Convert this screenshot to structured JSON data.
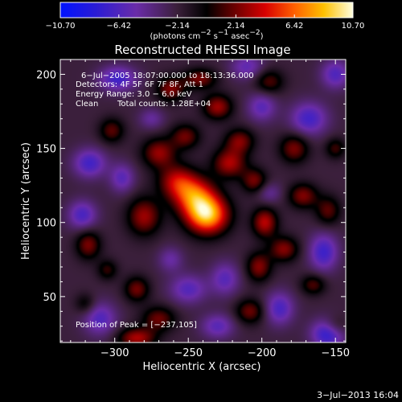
{
  "chart_data": {
    "type": "heatmap",
    "title": "Reconstructed RHESSI Image",
    "xlabel": "Heliocentric X (arcsec)",
    "ylabel": "Heliocentric Y (arcsec)",
    "xlim": [
      -337,
      -143
    ],
    "ylim": [
      19,
      210
    ],
    "x_ticks": [
      -300,
      -250,
      -200,
      -150
    ],
    "x_tick_labels": [
      "−300",
      "−250",
      "−200",
      "−150"
    ],
    "y_ticks": [
      50,
      100,
      150,
      200
    ],
    "y_tick_labels": [
      "50",
      "100",
      "150",
      "200"
    ],
    "colorbar": {
      "range": [
        -10.7,
        10.7
      ],
      "tick_labels": [
        "−10.70",
        "−6.42",
        "−2.14",
        "2.14",
        "6.42",
        "10.70"
      ],
      "unit_main": "(photons cm",
      "unit_sup1": "−2",
      "unit_mid": " s",
      "unit_sup2": "−1",
      "unit_end": " asec",
      "unit_sup3": "−2",
      "unit_close": ")"
    },
    "annotations": {
      "time_range": "6−Jul−2005 18:07:00.000 to 18:13:36.000",
      "detectors": "Detectors: 4F 5F 6F 7F 8F, Att 1",
      "energy": "Energy Range: 3.0 − 6.0 keV",
      "clean": "Clean",
      "total_counts": "Total counts: 1.28E+04",
      "peak_position": "Position of Peak = [−237,105]"
    },
    "peak": {
      "x": -237,
      "y": 105
    },
    "sources": [
      {
        "x": -237,
        "y": 105,
        "sx": 10,
        "sy": 9,
        "a": 10.7
      },
      {
        "x": -246,
        "y": 118,
        "sx": 10,
        "sy": 9,
        "a": 7.5
      },
      {
        "x": -258,
        "y": 128,
        "sx": 9,
        "sy": 8,
        "a": 5.2
      },
      {
        "x": -270,
        "y": 147,
        "sx": 8,
        "sy": 7,
        "a": 5.0
      },
      {
        "x": -252,
        "y": 158,
        "sx": 7,
        "sy": 6,
        "a": 4.2
      },
      {
        "x": -222,
        "y": 140,
        "sx": 8,
        "sy": 7,
        "a": 5.5
      },
      {
        "x": -230,
        "y": 178,
        "sx": 7,
        "sy": 6,
        "a": 5.2
      },
      {
        "x": -262,
        "y": 190,
        "sx": 7,
        "sy": 6,
        "a": 4.6
      },
      {
        "x": -242,
        "y": 197,
        "sx": 8,
        "sy": 5,
        "a": 4.4
      },
      {
        "x": -302,
        "y": 162,
        "sx": 6,
        "sy": 6,
        "a": 3.8
      },
      {
        "x": -280,
        "y": 104,
        "sx": 8,
        "sy": 9,
        "a": 5.2
      },
      {
        "x": -318,
        "y": 85,
        "sx": 6,
        "sy": 7,
        "a": 4.5
      },
      {
        "x": -305,
        "y": 68,
        "sx": 5,
        "sy": 5,
        "a": 3.0
      },
      {
        "x": -285,
        "y": 55,
        "sx": 6,
        "sy": 6,
        "a": 4.3
      },
      {
        "x": -270,
        "y": 35,
        "sx": 8,
        "sy": 6,
        "a": 4.2
      },
      {
        "x": -285,
        "y": 22,
        "sx": 9,
        "sy": 5,
        "a": 5.5
      },
      {
        "x": -198,
        "y": 100,
        "sx": 6,
        "sy": 7,
        "a": 5.8
      },
      {
        "x": -202,
        "y": 70,
        "sx": 6,
        "sy": 7,
        "a": 4.7
      },
      {
        "x": -208,
        "y": 40,
        "sx": 7,
        "sy": 6,
        "a": 4.2
      },
      {
        "x": -215,
        "y": 155,
        "sx": 7,
        "sy": 6,
        "a": 4.5
      },
      {
        "x": -205,
        "y": 128,
        "sx": 6,
        "sy": 6,
        "a": 4.4
      },
      {
        "x": -195,
        "y": 195,
        "sx": 7,
        "sy": 6,
        "a": 3.7
      },
      {
        "x": -178,
        "y": 150,
        "sx": 7,
        "sy": 7,
        "a": 4.5
      },
      {
        "x": -172,
        "y": 118,
        "sx": 7,
        "sy": 6,
        "a": 4.6
      },
      {
        "x": -185,
        "y": 82,
        "sx": 7,
        "sy": 6,
        "a": 4.7
      },
      {
        "x": -155,
        "y": 108,
        "sx": 6,
        "sy": 7,
        "a": 3.8
      },
      {
        "x": -165,
        "y": 58,
        "sx": 6,
        "sy": 5,
        "a": 3.6
      },
      {
        "x": -150,
        "y": 150,
        "sx": 5,
        "sy": 5,
        "a": 3.2
      },
      {
        "x": -320,
        "y": 45,
        "sx": 5,
        "sy": 5,
        "a": 2.6
      },
      {
        "x": -150,
        "y": 30,
        "sx": 6,
        "sy": 5,
        "a": 2.8
      },
      {
        "x": -298,
        "y": 197,
        "sx": 9,
        "sy": 6,
        "a": -5.0
      },
      {
        "x": -317,
        "y": 140,
        "sx": 8,
        "sy": 7,
        "a": -4.8
      },
      {
        "x": -295,
        "y": 130,
        "sx": 6,
        "sy": 7,
        "a": -3.8
      },
      {
        "x": -322,
        "y": 105,
        "sx": 7,
        "sy": 7,
        "a": -4.5
      },
      {
        "x": -310,
        "y": 35,
        "sx": 8,
        "sy": 8,
        "a": -4.2
      },
      {
        "x": -250,
        "y": 55,
        "sx": 9,
        "sy": 7,
        "a": -4.0
      },
      {
        "x": -225,
        "y": 62,
        "sx": 7,
        "sy": 8,
        "a": -3.8
      },
      {
        "x": -230,
        "y": 30,
        "sx": 8,
        "sy": 6,
        "a": -3.8
      },
      {
        "x": -188,
        "y": 42,
        "sx": 7,
        "sy": 8,
        "a": -4.5
      },
      {
        "x": -155,
        "y": 25,
        "sx": 8,
        "sy": 7,
        "a": -6.0
      },
      {
        "x": -158,
        "y": 80,
        "sx": 7,
        "sy": 9,
        "a": -5.0
      },
      {
        "x": -168,
        "y": 170,
        "sx": 9,
        "sy": 8,
        "a": -4.8
      },
      {
        "x": -200,
        "y": 178,
        "sx": 7,
        "sy": 7,
        "a": -3.8
      },
      {
        "x": -210,
        "y": 205,
        "sx": 8,
        "sy": 6,
        "a": -3.5
      },
      {
        "x": -150,
        "y": 200,
        "sx": 7,
        "sy": 7,
        "a": -4.2
      },
      {
        "x": -262,
        "y": 75,
        "sx": 6,
        "sy": 6,
        "a": -2.8
      },
      {
        "x": -195,
        "y": 120,
        "sx": 6,
        "sy": 5,
        "a": -2.5
      },
      {
        "x": -275,
        "y": 170,
        "sx": 6,
        "sy": 5,
        "a": -2.6
      }
    ]
  },
  "footer": {
    "date_stamp": "3−Jul−2013 16:04"
  }
}
